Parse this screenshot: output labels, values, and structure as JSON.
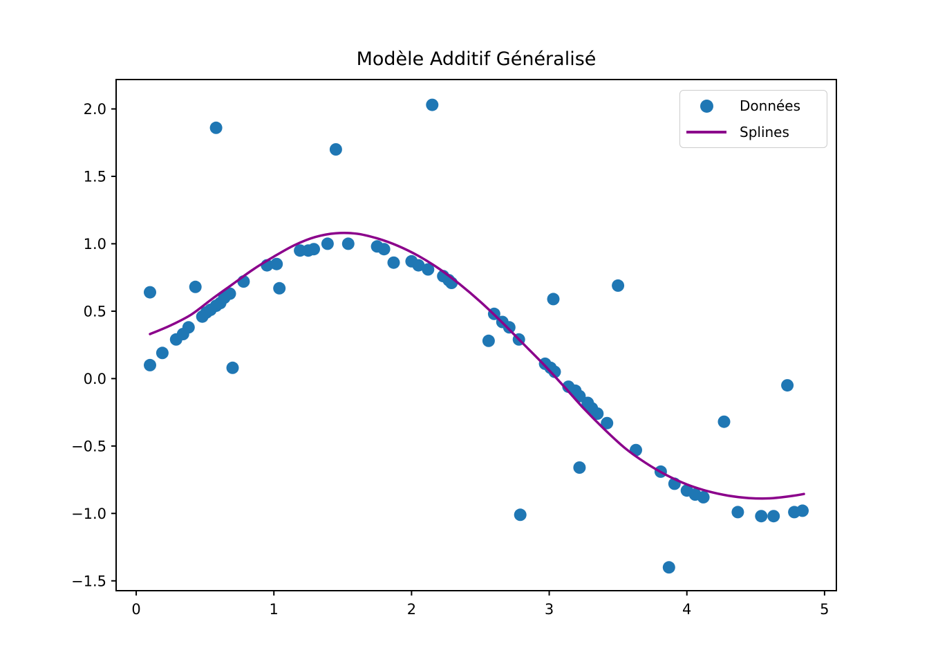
{
  "title": "Modèle Additif Généralisé",
  "colors": {
    "scatter": "#1f77b4",
    "spline": "#8B008B",
    "axis": "#000000",
    "background": "#ffffff",
    "legend_border": "#cccccc"
  },
  "legend": {
    "entries": [
      {
        "label": "Données",
        "marker": "dot",
        "color": "#1f77b4"
      },
      {
        "label": "Splines",
        "marker": "line",
        "color": "#8B008B"
      }
    ]
  },
  "axes": {
    "xlim": [
      -0.146,
      5.086
    ],
    "ylim": [
      -1.573,
      2.218
    ],
    "x_ticks": [
      0,
      1,
      2,
      3,
      4,
      5
    ],
    "x_tick_labels": [
      "0",
      "1",
      "2",
      "3",
      "4",
      "5"
    ],
    "y_ticks": [
      2.0,
      1.5,
      1.0,
      0.5,
      0.0,
      -0.5,
      -1.0,
      -1.5
    ],
    "y_tick_labels": [
      "2.0",
      "1.5",
      "1.0",
      "0.5",
      "0.0",
      "−0.5",
      "−1.0",
      "−1.5"
    ],
    "grid": false
  },
  "chart_data": {
    "type": "scatter",
    "title": "Modèle Additif Généralisé",
    "xlabel": "",
    "ylabel": "",
    "xlim": [
      -0.146,
      5.086
    ],
    "ylim": [
      -1.573,
      2.218
    ],
    "legend_position": "upper right",
    "series": [
      {
        "name": "Données",
        "type": "scatter",
        "color": "#1f77b4",
        "points": [
          [
            0.1,
            0.64
          ],
          [
            0.1,
            0.1
          ],
          [
            0.19,
            0.19
          ],
          [
            0.29,
            0.29
          ],
          [
            0.34,
            0.33
          ],
          [
            0.38,
            0.38
          ],
          [
            0.43,
            0.68
          ],
          [
            0.48,
            0.46
          ],
          [
            0.51,
            0.49
          ],
          [
            0.54,
            0.51
          ],
          [
            0.58,
            0.54
          ],
          [
            0.61,
            0.56
          ],
          [
            0.64,
            0.6
          ],
          [
            0.68,
            0.63
          ],
          [
            0.58,
            1.86
          ],
          [
            0.7,
            0.08
          ],
          [
            0.78,
            0.72
          ],
          [
            0.95,
            0.84
          ],
          [
            1.02,
            0.85
          ],
          [
            1.04,
            0.67
          ],
          [
            1.19,
            0.95
          ],
          [
            1.25,
            0.95
          ],
          [
            1.29,
            0.96
          ],
          [
            1.39,
            1.0
          ],
          [
            1.45,
            1.7
          ],
          [
            1.54,
            1.0
          ],
          [
            1.75,
            0.98
          ],
          [
            1.8,
            0.96
          ],
          [
            1.87,
            0.86
          ],
          [
            2.0,
            0.87
          ],
          [
            2.05,
            0.84
          ],
          [
            2.12,
            0.81
          ],
          [
            2.15,
            2.03
          ],
          [
            2.23,
            0.76
          ],
          [
            2.27,
            0.73
          ],
          [
            2.29,
            0.71
          ],
          [
            2.56,
            0.28
          ],
          [
            2.6,
            0.48
          ],
          [
            2.66,
            0.42
          ],
          [
            2.71,
            0.38
          ],
          [
            2.78,
            0.29
          ],
          [
            2.79,
            -1.01
          ],
          [
            2.97,
            0.11
          ],
          [
            3.01,
            0.08
          ],
          [
            3.04,
            0.05
          ],
          [
            3.03,
            0.59
          ],
          [
            3.14,
            -0.06
          ],
          [
            3.19,
            -0.09
          ],
          [
            3.22,
            -0.13
          ],
          [
            3.28,
            -0.18
          ],
          [
            3.31,
            -0.22
          ],
          [
            3.35,
            -0.26
          ],
          [
            3.42,
            -0.33
          ],
          [
            3.22,
            -0.66
          ],
          [
            3.5,
            0.69
          ],
          [
            3.63,
            -0.53
          ],
          [
            3.81,
            -0.69
          ],
          [
            3.91,
            -0.78
          ],
          [
            4.0,
            -0.83
          ],
          [
            4.06,
            -0.86
          ],
          [
            4.12,
            -0.88
          ],
          [
            3.87,
            -1.4
          ],
          [
            4.27,
            -0.32
          ],
          [
            4.37,
            -0.99
          ],
          [
            4.54,
            -1.02
          ],
          [
            4.63,
            -1.02
          ],
          [
            4.78,
            -0.99
          ],
          [
            4.84,
            -0.98
          ],
          [
            4.73,
            -0.05
          ]
        ]
      },
      {
        "name": "Splines",
        "type": "line",
        "color": "#8B008B",
        "points": [
          [
            0.1,
            0.33
          ],
          [
            0.25,
            0.395
          ],
          [
            0.4,
            0.475
          ],
          [
            0.55,
            0.59
          ],
          [
            0.7,
            0.7
          ],
          [
            0.85,
            0.81
          ],
          [
            1.0,
            0.905
          ],
          [
            1.15,
            0.99
          ],
          [
            1.3,
            1.05
          ],
          [
            1.45,
            1.078
          ],
          [
            1.6,
            1.075
          ],
          [
            1.75,
            1.04
          ],
          [
            1.9,
            0.985
          ],
          [
            2.05,
            0.91
          ],
          [
            2.2,
            0.815
          ],
          [
            2.35,
            0.7
          ],
          [
            2.5,
            0.57
          ],
          [
            2.65,
            0.425
          ],
          [
            2.8,
            0.27
          ],
          [
            2.95,
            0.115
          ],
          [
            3.1,
            -0.05
          ],
          [
            3.25,
            -0.22
          ],
          [
            3.4,
            -0.375
          ],
          [
            3.55,
            -0.515
          ],
          [
            3.7,
            -0.625
          ],
          [
            3.85,
            -0.715
          ],
          [
            4.0,
            -0.785
          ],
          [
            4.15,
            -0.835
          ],
          [
            4.3,
            -0.868
          ],
          [
            4.45,
            -0.886
          ],
          [
            4.6,
            -0.888
          ],
          [
            4.75,
            -0.872
          ],
          [
            4.85,
            -0.856
          ]
        ]
      }
    ]
  }
}
